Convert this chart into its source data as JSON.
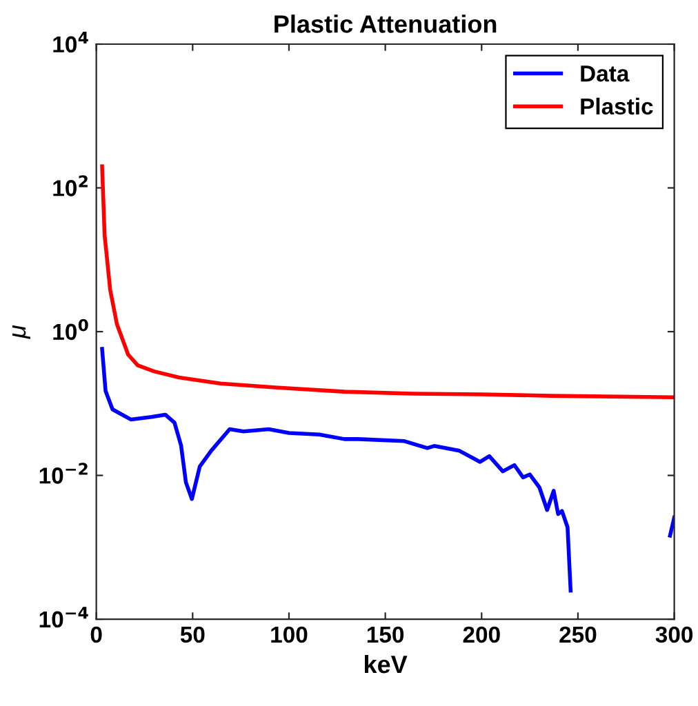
{
  "chart_data": {
    "type": "line",
    "title": "Plastic Attenuation",
    "xlabel": "keV",
    "ylabel": "μ",
    "xlim": [
      0,
      300
    ],
    "xticks": [
      0,
      50,
      100,
      150,
      200,
      250,
      300
    ],
    "ylim": [
      0.0001,
      10000
    ],
    "yticks": [
      {
        "value": 0.0001,
        "label": "10$^{−4}$"
      },
      {
        "value": 0.01,
        "label": "10$^{−2}$"
      },
      {
        "value": 1,
        "label": "10$^{0}$"
      },
      {
        "value": 100,
        "label": "10$^{2}$"
      },
      {
        "value": 10000,
        "label": "10$^{4}$"
      }
    ],
    "log": "y",
    "grid": false,
    "legend": "top right",
    "line_style": "solid",
    "marker": "none",
    "series": [
      {
        "name": "Data",
        "color": "#0000ff",
        "x": [
          3,
          4.8,
          8.4,
          17.9,
          28.6,
          35.8,
          40.6,
          44,
          46.5,
          49.6,
          53.7,
          59.6,
          69.2,
          76.4,
          89.5,
          100,
          115.7,
          128.8,
          136,
          159.9,
          171.8,
          175.4,
          188.5,
          199.2,
          204,
          211,
          217,
          221.5,
          225,
          230,
          234,
          237.4,
          239.7,
          241.7,
          244.6,
          246.2,
          270,
          297.8,
          300
        ],
        "values": [
          0.575,
          0.15,
          0.083,
          0.06,
          0.065,
          0.07,
          0.054,
          0.026,
          0.008,
          0.0047,
          0.0133,
          0.022,
          0.044,
          0.041,
          0.044,
          0.039,
          0.037,
          0.032,
          0.032,
          0.03,
          0.024,
          0.0257,
          0.022,
          0.0154,
          0.0185,
          0.0114,
          0.0139,
          0.0094,
          0.0103,
          0.0068,
          0.0033,
          0.0061,
          0.0029,
          0.0032,
          0.0019,
          0.00025,
          null,
          0.00145,
          0.0026
        ]
      },
      {
        "name": "Plastic",
        "color": "#ff0000",
        "x": [
          3,
          4.3,
          7.2,
          10.7,
          16.5,
          21.5,
          30,
          42.9,
          64.4,
          93,
          128.8,
          164.6,
          200.4,
          236.2,
          300
        ],
        "values": [
          200,
          22,
          3.8,
          1.27,
          0.48,
          0.34,
          0.28,
          0.23,
          0.19,
          0.167,
          0.146,
          0.137,
          0.134,
          0.128,
          0.122
        ]
      }
    ]
  }
}
